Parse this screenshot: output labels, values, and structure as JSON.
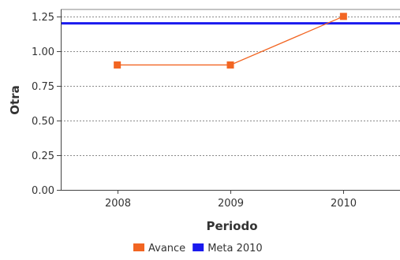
{
  "chart_data": {
    "type": "line",
    "xlabel": "Periodo",
    "ylabel": "Otra",
    "categories": [
      "2008",
      "2009",
      "2010"
    ],
    "ylim": [
      0,
      1.3
    ],
    "yticks": [
      "0.00",
      "0.25",
      "0.50",
      "0.75",
      "1.00",
      "1.25"
    ],
    "ytick_values": [
      0,
      0.25,
      0.5,
      0.75,
      1.0,
      1.25
    ],
    "grid": true,
    "series": [
      {
        "name": "Avance",
        "values": [
          0.9,
          0.9,
          1.25
        ],
        "color": "#f26522"
      }
    ],
    "reference_lines": [
      {
        "name": "Meta 2010",
        "value": 1.2,
        "color": "#1a1aee"
      }
    ],
    "legend_position": "bottom"
  }
}
